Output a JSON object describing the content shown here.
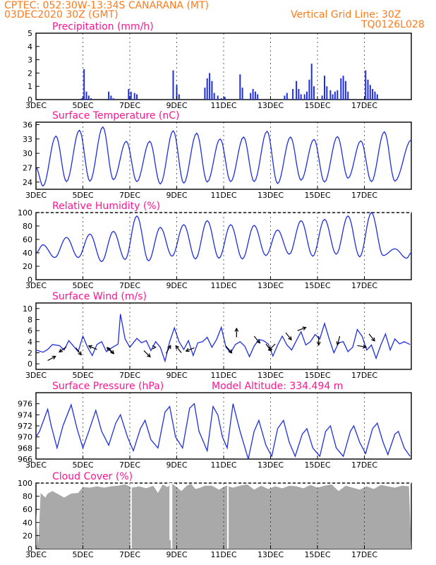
{
  "header": {
    "line1": "CPTEC:   052:30W-13:34S   CANARANA (MT)",
    "line2": "03DEC2020 30Z (GMT)",
    "grid_note": "Vertical Grid Line: 30Z",
    "code": "TQ0126L028"
  },
  "colors": {
    "header": "#ff7a1a",
    "title": "#ff1493",
    "series": "#1f2fe0",
    "cloud": "#a9a9a9",
    "frame": "#000000"
  },
  "x_ticks": [
    "3DEC",
    "5DEC",
    "7DEC",
    "9DEC",
    "11DEC",
    "13DEC",
    "15DEC",
    "17DEC"
  ],
  "x_tick_days": [
    0,
    2,
    4,
    6,
    8,
    10,
    12,
    14
  ],
  "chart_data": [
    {
      "type": "bar",
      "title": "Precipitation (mm/h)",
      "x_unit": "days since 3DEC 30Z",
      "ylim": [
        0,
        5
      ],
      "yticks": [
        0,
        1,
        2,
        3,
        4,
        5
      ],
      "points": [
        [
          0.05,
          0.05
        ],
        [
          1.95,
          0.1
        ],
        [
          2.05,
          2.3
        ],
        [
          2.15,
          0.6
        ],
        [
          2.25,
          0.3
        ],
        [
          2.35,
          0.1
        ],
        [
          3.1,
          0.6
        ],
        [
          3.2,
          0.3
        ],
        [
          3.3,
          0.1
        ],
        [
          3.95,
          0.8
        ],
        [
          4.05,
          0.6
        ],
        [
          4.2,
          0.5
        ],
        [
          4.3,
          0.4
        ],
        [
          5.85,
          2.2
        ],
        [
          6.0,
          1.1
        ],
        [
          6.1,
          0.4
        ],
        [
          7.2,
          0.9
        ],
        [
          7.3,
          1.6
        ],
        [
          7.4,
          2.0
        ],
        [
          7.5,
          1.4
        ],
        [
          7.6,
          0.5
        ],
        [
          7.75,
          0.3
        ],
        [
          7.9,
          0.1
        ],
        [
          8.05,
          0.2
        ],
        [
          8.7,
          1.9
        ],
        [
          8.8,
          0.9
        ],
        [
          9.15,
          0.5
        ],
        [
          9.25,
          0.8
        ],
        [
          9.35,
          0.6
        ],
        [
          9.45,
          0.4
        ],
        [
          10.6,
          0.3
        ],
        [
          10.7,
          0.5
        ],
        [
          10.95,
          0.8
        ],
        [
          11.1,
          1.4
        ],
        [
          11.2,
          0.8
        ],
        [
          11.3,
          0.4
        ],
        [
          11.45,
          0.4
        ],
        [
          11.55,
          0.6
        ],
        [
          11.65,
          1.5
        ],
        [
          11.75,
          2.7
        ],
        [
          11.85,
          1.0
        ],
        [
          12.2,
          0.3
        ],
        [
          12.3,
          1.8
        ],
        [
          12.4,
          1.0
        ],
        [
          12.55,
          0.7
        ],
        [
          12.65,
          0.4
        ],
        [
          12.75,
          0.6
        ],
        [
          12.85,
          0.7
        ],
        [
          13.0,
          1.6
        ],
        [
          13.1,
          1.8
        ],
        [
          13.2,
          1.4
        ],
        [
          13.3,
          0.6
        ],
        [
          14.05,
          2.2
        ],
        [
          14.15,
          1.5
        ],
        [
          14.25,
          1.1
        ],
        [
          14.35,
          0.8
        ],
        [
          14.45,
          0.6
        ],
        [
          14.55,
          0.4
        ]
      ]
    },
    {
      "type": "line",
      "title": "Surface Temperature (nC)",
      "x_unit": "days since 3DEC 30Z",
      "ylim": [
        22.5,
        36.5
      ],
      "yticks": [
        24,
        27,
        30,
        33,
        36
      ],
      "min_day_offset": 0.3,
      "min_hour_offset": 0.85,
      "minima": [
        23.2,
        24.1,
        24.2,
        24.5,
        24.1,
        23.6,
        23.8,
        24.0,
        24.1,
        24.1,
        23.7,
        24.4,
        24.0,
        24.8,
        24.1,
        24.2
      ],
      "maxima": [
        33.6,
        34.8,
        35.5,
        32.5,
        32.5,
        34.7,
        34.2,
        33.0,
        33.4,
        34.6,
        33.4,
        32.9,
        33.5,
        32.6,
        34.5
      ]
    },
    {
      "type": "line",
      "title": "Relative Humidity (%)",
      "x_unit": "days since 3DEC 30Z",
      "ylim": [
        0,
        100
      ],
      "yticks": [
        0,
        20,
        40,
        60,
        80,
        100
      ],
      "min_day_offset": 0.8,
      "max_day_offset": 0.3,
      "maxima": [
        52,
        63,
        68,
        72,
        95,
        78,
        82,
        88,
        82,
        81,
        74,
        88,
        90,
        95,
        100,
        46
      ],
      "minima": [
        33,
        33,
        27,
        30,
        28,
        35,
        31,
        32,
        31,
        36,
        38,
        35,
        38,
        34,
        36,
        32
      ]
    },
    {
      "type": "line",
      "title": "Surface Wind (m/s)",
      "x_unit": "days since 3DEC 30Z",
      "ylim": [
        -1,
        11
      ],
      "yticks": [
        0,
        2,
        4,
        6,
        8,
        10
      ],
      "points": [
        [
          0,
          2.5
        ],
        [
          0.3,
          2.1
        ],
        [
          0.5,
          2.6
        ],
        [
          0.7,
          3.5
        ],
        [
          1.0,
          3.3
        ],
        [
          1.2,
          2.5
        ],
        [
          1.4,
          4.2
        ],
        [
          1.6,
          3.2
        ],
        [
          1.8,
          2.2
        ],
        [
          2.0,
          5.0
        ],
        [
          2.2,
          3.0
        ],
        [
          2.4,
          1.5
        ],
        [
          2.6,
          3.5
        ],
        [
          2.8,
          4.0
        ],
        [
          3.0,
          2.2
        ],
        [
          3.2,
          2.8
        ],
        [
          3.5,
          3.6
        ],
        [
          3.6,
          9.0
        ],
        [
          3.8,
          4.5
        ],
        [
          4.0,
          3.0
        ],
        [
          4.3,
          4.6
        ],
        [
          4.5,
          3.8
        ],
        [
          4.7,
          4.2
        ],
        [
          4.9,
          2.4
        ],
        [
          5.1,
          4.0
        ],
        [
          5.3,
          3.0
        ],
        [
          5.5,
          0.5
        ],
        [
          5.7,
          4.0
        ],
        [
          5.9,
          6.5
        ],
        [
          6.1,
          4.0
        ],
        [
          6.3,
          2.6
        ],
        [
          6.5,
          4.2
        ],
        [
          6.7,
          1.5
        ],
        [
          6.9,
          3.8
        ],
        [
          7.1,
          4.0
        ],
        [
          7.3,
          4.8
        ],
        [
          7.5,
          3.0
        ],
        [
          7.7,
          4.4
        ],
        [
          7.9,
          6.6
        ],
        [
          8.1,
          3.0
        ],
        [
          8.3,
          2.0
        ],
        [
          8.5,
          3.5
        ],
        [
          8.7,
          4.0
        ],
        [
          8.9,
          3.2
        ],
        [
          9.1,
          1.3
        ],
        [
          9.3,
          3.2
        ],
        [
          9.5,
          4.4
        ],
        [
          9.7,
          4.2
        ],
        [
          9.9,
          3.6
        ],
        [
          10.1,
          1.4
        ],
        [
          10.3,
          3.4
        ],
        [
          10.5,
          5.0
        ],
        [
          10.7,
          3.4
        ],
        [
          10.9,
          2.5
        ],
        [
          11.1,
          4.2
        ],
        [
          11.3,
          5.8
        ],
        [
          11.5,
          3.4
        ],
        [
          11.7,
          4.0
        ],
        [
          11.9,
          5.3
        ],
        [
          12.1,
          4.5
        ],
        [
          12.3,
          7.3
        ],
        [
          12.5,
          4.5
        ],
        [
          12.7,
          2.0
        ],
        [
          12.9,
          3.8
        ],
        [
          13.1,
          4.0
        ],
        [
          13.3,
          2.2
        ],
        [
          13.5,
          3.0
        ],
        [
          13.7,
          6.2
        ],
        [
          13.9,
          5.0
        ],
        [
          14.1,
          2.5
        ],
        [
          14.3,
          3.4
        ],
        [
          14.5,
          1.0
        ],
        [
          14.7,
          3.4
        ],
        [
          14.9,
          5.4
        ],
        [
          15.1,
          2.5
        ],
        [
          15.3,
          4.5
        ],
        [
          15.5,
          3.6
        ],
        [
          15.7,
          4.0
        ],
        [
          15.95,
          3.5
        ]
      ],
      "arrows": [
        [
          0.5,
          3.0,
          0.6,
          1.6
        ],
        [
          1.3,
          -1.2,
          3.1,
          -0.9
        ],
        [
          1.7,
          1.2,
          2.9,
          -1.6
        ],
        [
          2.6,
          -0.9,
          2.6,
          0.4
        ],
        [
          3.05,
          1.5,
          3.0,
          -1.5
        ],
        [
          3.3,
          -0.6,
          1.8,
          0.6
        ],
        [
          4.6,
          1.0,
          2.4,
          -1.0
        ],
        [
          5.1,
          0.0,
          3.0,
          0.0
        ],
        [
          5.55,
          0.4,
          1.9,
          0.7
        ],
        [
          6.2,
          -0.8,
          2.0,
          1.0
        ],
        [
          6.75,
          -1.0,
          2.9,
          -0.4
        ],
        [
          8.1,
          0.6,
          3.2,
          -0.7
        ],
        [
          8.55,
          0.0,
          4.8,
          0.8
        ],
        [
          9.3,
          1.0,
          5.0,
          -1.2
        ],
        [
          9.8,
          0.6,
          3.6,
          -0.8
        ],
        [
          10.2,
          -1.0,
          3.6,
          -1.0
        ],
        [
          10.65,
          0.8,
          5.6,
          -1.0
        ],
        [
          11.15,
          1.6,
          6.0,
          0.6
        ],
        [
          12.05,
          0.0,
          5.0,
          -0.9
        ],
        [
          12.95,
          -0.3,
          5.0,
          -1.1
        ],
        [
          13.7,
          1.2,
          3.3,
          -0.2
        ],
        [
          14.2,
          0.8,
          5.4,
          -1.0
        ]
      ]
    },
    {
      "type": "line",
      "title": "Surface Pressure (hPa)",
      "annotation": "Model Altitude: 334.494 m",
      "x_unit": "days since 3DEC 30Z",
      "ylim": [
        966,
        978
      ],
      "yticks": [
        966,
        968,
        970,
        972,
        974,
        976
      ],
      "points": [
        [
          0,
          970
        ],
        [
          0.15,
          971
        ],
        [
          0.5,
          975
        ],
        [
          0.65,
          972
        ],
        [
          0.9,
          968
        ],
        [
          1.15,
          972
        ],
        [
          1.5,
          975.8
        ],
        [
          1.75,
          971.5
        ],
        [
          2.0,
          968
        ],
        [
          2.25,
          971
        ],
        [
          2.55,
          974.8
        ],
        [
          2.8,
          971
        ],
        [
          3.1,
          968.5
        ],
        [
          3.4,
          972.5
        ],
        [
          3.6,
          974
        ],
        [
          3.9,
          970
        ],
        [
          4.15,
          967.5
        ],
        [
          4.45,
          971.5
        ],
        [
          4.65,
          973
        ],
        [
          4.9,
          969.5
        ],
        [
          5.2,
          968
        ],
        [
          5.5,
          974.5
        ],
        [
          5.7,
          975.5
        ],
        [
          5.95,
          970
        ],
        [
          6.25,
          968
        ],
        [
          6.55,
          975.2
        ],
        [
          6.75,
          976
        ],
        [
          6.95,
          971
        ],
        [
          7.3,
          967.5
        ],
        [
          7.55,
          975.5
        ],
        [
          7.75,
          974
        ],
        [
          7.95,
          970
        ],
        [
          8.15,
          968
        ],
        [
          8.4,
          976
        ],
        [
          8.7,
          971
        ],
        [
          9.05,
          966
        ],
        [
          9.3,
          971
        ],
        [
          9.5,
          973
        ],
        [
          9.8,
          968.5
        ],
        [
          10.05,
          966.5
        ],
        [
          10.3,
          971.5
        ],
        [
          10.55,
          973
        ],
        [
          10.8,
          969
        ],
        [
          11.05,
          966.5
        ],
        [
          11.35,
          970.5
        ],
        [
          11.55,
          971.5
        ],
        [
          11.8,
          968
        ],
        [
          12.1,
          966.5
        ],
        [
          12.35,
          971
        ],
        [
          12.55,
          972
        ],
        [
          12.8,
          968
        ],
        [
          13.1,
          966.5
        ],
        [
          13.4,
          971
        ],
        [
          13.55,
          972
        ],
        [
          13.8,
          969
        ],
        [
          14.05,
          967
        ],
        [
          14.35,
          971.5
        ],
        [
          14.55,
          972.5
        ],
        [
          14.8,
          969
        ],
        [
          15.0,
          966.8
        ],
        [
          15.3,
          970.5
        ],
        [
          15.45,
          971
        ],
        [
          15.7,
          968
        ],
        [
          15.95,
          966.5
        ]
      ]
    },
    {
      "type": "area",
      "title": "Cloud Cover (%)",
      "x_unit": "days since 3DEC 30Z",
      "ylim": [
        0,
        100
      ],
      "yticks": [
        0,
        20,
        40,
        60,
        80,
        100
      ],
      "points": [
        [
          0,
          55
        ],
        [
          0.1,
          7
        ],
        [
          0.2,
          85
        ],
        [
          0.4,
          78
        ],
        [
          0.5,
          84
        ],
        [
          0.7,
          88
        ],
        [
          1.0,
          82
        ],
        [
          1.2,
          78
        ],
        [
          1.5,
          84
        ],
        [
          1.8,
          85
        ],
        [
          2.0,
          94
        ],
        [
          2.3,
          93
        ],
        [
          2.6,
          95
        ],
        [
          2.9,
          93
        ],
        [
          3.2,
          95
        ],
        [
          3.5,
          96
        ],
        [
          3.8,
          98
        ],
        [
          4.1,
          93
        ],
        [
          4.4,
          95
        ],
        [
          4.7,
          92
        ],
        [
          5.0,
          96
        ],
        [
          5.2,
          85
        ],
        [
          5.4,
          98
        ],
        [
          5.6,
          94
        ],
        [
          5.8,
          99
        ],
        [
          6.0,
          94
        ],
        [
          6.2,
          88
        ],
        [
          6.4,
          95
        ],
        [
          6.6,
          99
        ],
        [
          6.8,
          91
        ],
        [
          7.0,
          93
        ],
        [
          7.2,
          96
        ],
        [
          7.5,
          96
        ],
        [
          7.8,
          90
        ],
        [
          8.1,
          96
        ],
        [
          8.4,
          93
        ],
        [
          8.7,
          96
        ],
        [
          9.0,
          98
        ],
        [
          9.3,
          90
        ],
        [
          9.6,
          96
        ],
        [
          9.9,
          91
        ],
        [
          10.2,
          95
        ],
        [
          10.5,
          92
        ],
        [
          10.8,
          96
        ],
        [
          11.1,
          95
        ],
        [
          11.4,
          92
        ],
        [
          11.7,
          97
        ],
        [
          12.0,
          93
        ],
        [
          12.3,
          96
        ],
        [
          12.6,
          98
        ],
        [
          12.9,
          88
        ],
        [
          13.2,
          96
        ],
        [
          13.5,
          93
        ],
        [
          13.8,
          90
        ],
        [
          14.1,
          95
        ],
        [
          14.4,
          91
        ],
        [
          14.7,
          97
        ],
        [
          15.0,
          95
        ],
        [
          15.3,
          93
        ],
        [
          15.6,
          96
        ],
        [
          15.9,
          95
        ]
      ],
      "gaps": [
        [
          4.05,
          0
        ],
        [
          5.72,
          13
        ],
        [
          5.78,
          0
        ],
        [
          8.18,
          0
        ]
      ]
    }
  ]
}
